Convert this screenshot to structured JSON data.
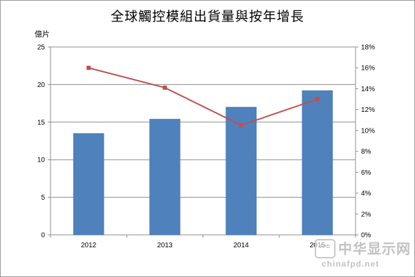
{
  "chart_data": {
    "type": "bar",
    "title": "全球觸控模組出貨量與按年增長",
    "y_unit_label": "億片",
    "categories": [
      "2012",
      "2013",
      "2014",
      "2015"
    ],
    "series": [
      {
        "type": "bar",
        "axis": "left",
        "color": "#4f81bd",
        "values": [
          13.5,
          15.4,
          17.0,
          19.2
        ]
      },
      {
        "type": "line",
        "axis": "right",
        "color": "#c0504d",
        "values": [
          16.0,
          14.1,
          10.5,
          13.0
        ]
      }
    ],
    "y_left": {
      "min": 0,
      "max": 25,
      "ticks": [
        "0",
        "5",
        "10",
        "15",
        "20",
        "25"
      ]
    },
    "y_right": {
      "min": 0,
      "max": 18,
      "ticks": [
        "0%",
        "2%",
        "4%",
        "6%",
        "8%",
        "10%",
        "12%",
        "14%",
        "16%",
        "18%"
      ]
    },
    "grid": true,
    "legend": "none"
  },
  "watermark": {
    "badge": "FPD",
    "name": "中华显示网",
    "url": "chinafpd.net"
  }
}
